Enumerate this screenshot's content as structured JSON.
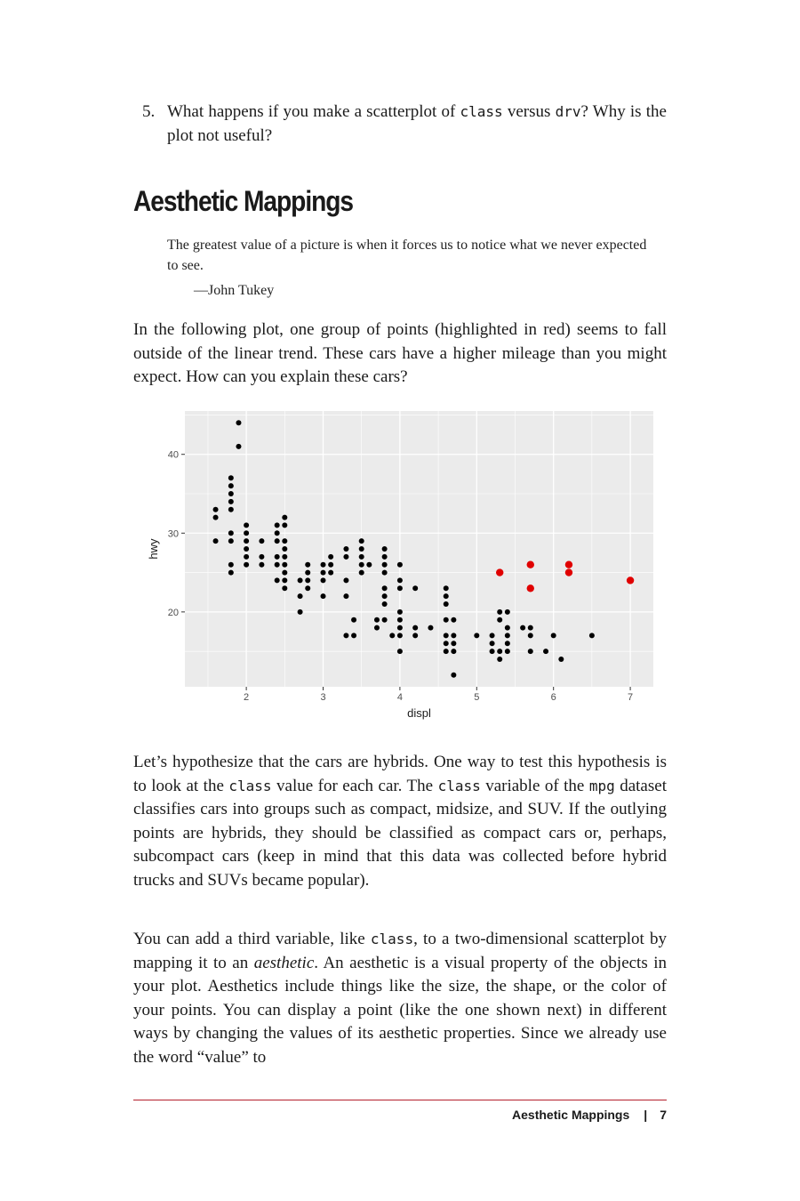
{
  "exercise": {
    "number": "5.",
    "text_a": "What happens if you make a scatterplot of ",
    "code_a": "class",
    "text_b": " versus ",
    "code_b": "drv",
    "text_c": "? Why is the plot not useful?"
  },
  "section_heading": "Aesthetic Mappings",
  "epigraph": {
    "quote": "The greatest value of a picture is when it forces us to notice what we never expected to see.",
    "attribution": "—John Tukey"
  },
  "para1": "In the following plot, one group of points (highlighted in red) seems to fall outside of the linear trend. These cars have a higher mileage than you might expect. How can you explain these cars?",
  "para2": {
    "a": "Let’s hypothesize that the cars are hybrids. One way to test this hypothesis is to look at the ",
    "code1": "class",
    "b": " value for each car. The ",
    "code2": "class",
    "c": " variable of the ",
    "code3": "mpg",
    "d": " dataset classifies cars into groups such as compact, midsize, and SUV. If the outlying points are hybrids, they should be classified as compact cars or, perhaps, subcompact cars (keep in mind that this data was collected before hybrid trucks and SUVs became popular)."
  },
  "para3": {
    "a": "You can add a third variable, like ",
    "code1": "class",
    "b": ", to a two-dimensional scatterplot by mapping it to an ",
    "em": "aesthetic",
    "c": ". An aesthetic is a visual property of the objects in your plot. Aesthetics include things like the size, the shape, or the color of your points. You can display a point (like the one shown next) in different ways by changing the values of its aesthetic properties. Since we already use the word “value” to"
  },
  "footer": {
    "section": "Aesthetic Mappings",
    "separator": "|",
    "page": "7"
  },
  "chart_data": {
    "type": "scatter",
    "xlabel": "displ",
    "ylabel": "hwy",
    "xlim": [
      1.2,
      7.3
    ],
    "ylim": [
      10.5,
      45.5
    ],
    "xticks": [
      2,
      3,
      4,
      5,
      6,
      7
    ],
    "yticks": [
      20,
      30,
      40
    ],
    "grid": true,
    "colors": {
      "panel": "#ebebeb",
      "grid": "#ffffff",
      "point": "#000000",
      "highlight": "#e00000"
    },
    "points": [
      [
        1.6,
        33
      ],
      [
        1.6,
        32
      ],
      [
        1.6,
        29
      ],
      [
        1.8,
        37
      ],
      [
        1.8,
        36
      ],
      [
        1.8,
        35
      ],
      [
        1.8,
        34
      ],
      [
        1.8,
        33
      ],
      [
        1.8,
        30
      ],
      [
        1.8,
        29
      ],
      [
        1.8,
        26
      ],
      [
        1.8,
        25
      ],
      [
        1.9,
        44
      ],
      [
        1.9,
        41
      ],
      [
        2.0,
        31
      ],
      [
        2.0,
        30
      ],
      [
        2.0,
        29
      ],
      [
        2.0,
        28
      ],
      [
        2.0,
        27
      ],
      [
        2.0,
        26
      ],
      [
        2.2,
        29
      ],
      [
        2.2,
        27
      ],
      [
        2.2,
        26
      ],
      [
        2.4,
        31
      ],
      [
        2.4,
        30
      ],
      [
        2.4,
        29
      ],
      [
        2.4,
        27
      ],
      [
        2.4,
        26
      ],
      [
        2.4,
        24
      ],
      [
        2.5,
        32
      ],
      [
        2.5,
        31
      ],
      [
        2.5,
        29
      ],
      [
        2.5,
        28
      ],
      [
        2.5,
        27
      ],
      [
        2.5,
        26
      ],
      [
        2.5,
        25
      ],
      [
        2.5,
        24
      ],
      [
        2.5,
        23
      ],
      [
        2.7,
        24
      ],
      [
        2.7,
        22
      ],
      [
        2.7,
        20
      ],
      [
        2.8,
        26
      ],
      [
        2.8,
        25
      ],
      [
        2.8,
        24
      ],
      [
        2.8,
        23
      ],
      [
        3.0,
        26
      ],
      [
        3.0,
        25
      ],
      [
        3.0,
        24
      ],
      [
        3.0,
        22
      ],
      [
        3.1,
        27
      ],
      [
        3.1,
        26
      ],
      [
        3.1,
        25
      ],
      [
        3.3,
        28
      ],
      [
        3.3,
        27
      ],
      [
        3.3,
        24
      ],
      [
        3.3,
        22
      ],
      [
        3.3,
        17
      ],
      [
        3.4,
        19
      ],
      [
        3.4,
        17
      ],
      [
        3.5,
        29
      ],
      [
        3.5,
        28
      ],
      [
        3.5,
        27
      ],
      [
        3.5,
        26
      ],
      [
        3.5,
        25
      ],
      [
        3.6,
        26
      ],
      [
        3.7,
        19
      ],
      [
        3.7,
        18
      ],
      [
        3.8,
        28
      ],
      [
        3.8,
        27
      ],
      [
        3.8,
        26
      ],
      [
        3.8,
        25
      ],
      [
        3.8,
        23
      ],
      [
        3.8,
        22
      ],
      [
        3.8,
        21
      ],
      [
        3.8,
        19
      ],
      [
        3.9,
        17
      ],
      [
        4.0,
        26
      ],
      [
        4.0,
        24
      ],
      [
        4.0,
        23
      ],
      [
        4.0,
        20
      ],
      [
        4.0,
        19
      ],
      [
        4.0,
        18
      ],
      [
        4.0,
        17
      ],
      [
        4.0,
        15
      ],
      [
        4.2,
        23
      ],
      [
        4.2,
        18
      ],
      [
        4.2,
        17
      ],
      [
        4.4,
        18
      ],
      [
        4.6,
        23
      ],
      [
        4.6,
        22
      ],
      [
        4.6,
        21
      ],
      [
        4.6,
        19
      ],
      [
        4.6,
        17
      ],
      [
        4.6,
        16
      ],
      [
        4.6,
        15
      ],
      [
        4.7,
        19
      ],
      [
        4.7,
        17
      ],
      [
        4.7,
        16
      ],
      [
        4.7,
        15
      ],
      [
        4.7,
        12
      ],
      [
        5.0,
        17
      ],
      [
        5.2,
        17
      ],
      [
        5.2,
        16
      ],
      [
        5.2,
        15
      ],
      [
        5.3,
        19
      ],
      [
        5.3,
        15
      ],
      [
        5.3,
        14
      ],
      [
        5.4,
        20
      ],
      [
        5.4,
        18
      ],
      [
        5.4,
        17
      ],
      [
        5.4,
        16
      ],
      [
        5.4,
        15
      ],
      [
        5.3,
        20
      ],
      [
        5.6,
        18
      ],
      [
        5.7,
        18
      ],
      [
        5.7,
        17
      ],
      [
        5.7,
        15
      ],
      [
        5.9,
        15
      ],
      [
        6.0,
        17
      ],
      [
        6.1,
        14
      ],
      [
        6.5,
        17
      ]
    ],
    "highlighted": [
      [
        5.3,
        25
      ],
      [
        5.7,
        26
      ],
      [
        5.7,
        23
      ],
      [
        6.2,
        26
      ],
      [
        6.2,
        25
      ],
      [
        7.0,
        24
      ]
    ]
  }
}
